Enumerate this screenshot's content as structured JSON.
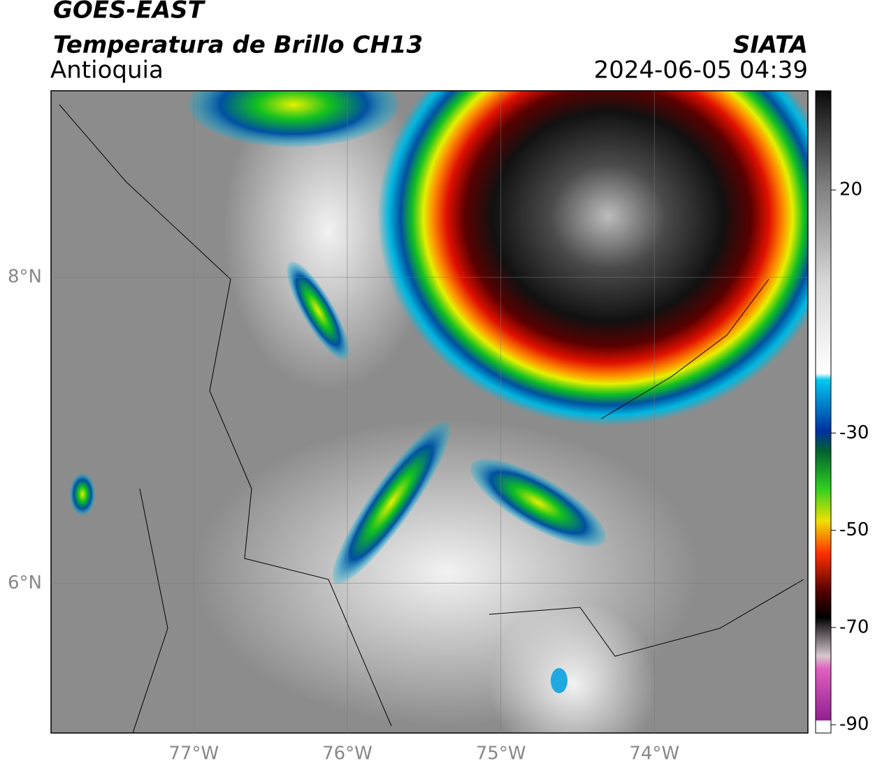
{
  "header": {
    "source": "GOES-EAST",
    "product": "Temperatura de Brillo CH13",
    "agency": "SIATA",
    "region": "Antioquia",
    "datetime": "2024-06-05 04:39"
  },
  "map": {
    "xlim": [
      -77.93,
      -73.0
    ],
    "ylim": [
      5.02,
      9.22
    ],
    "grid": true,
    "xticks": [
      {
        "value": -77,
        "label": "77°W"
      },
      {
        "value": -76,
        "label": "76°W"
      },
      {
        "value": -75,
        "label": "75°W"
      },
      {
        "value": -74,
        "label": "74°W"
      }
    ],
    "yticks": [
      {
        "value": 6,
        "label": "6°N"
      },
      {
        "value": 8,
        "label": "8°N"
      }
    ]
  },
  "colorbar": {
    "lim": [
      -91.7,
      40.4
    ],
    "ticks": [
      20,
      -30,
      -50,
      -70,
      -90
    ]
  }
}
